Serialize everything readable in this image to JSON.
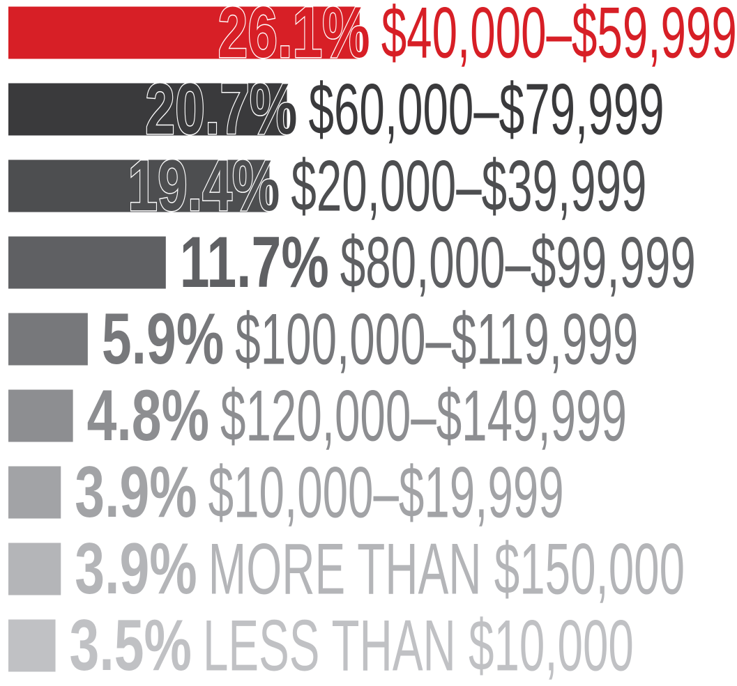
{
  "chart_data": {
    "type": "bar",
    "orientation": "horizontal",
    "categories": [
      "$40,000–$59,999",
      "$60,000–$79,999",
      "$20,000–$39,999",
      "$80,000–$99,999",
      "$100,000–$119,999",
      "$120,000–$149,999",
      "$10,000–$19,999",
      "MORE THAN $150,000",
      "LESS THAN $10,000"
    ],
    "values": [
      26.1,
      20.7,
      19.4,
      11.7,
      5.9,
      4.8,
      3.9,
      3.9,
      3.5
    ],
    "value_labels": [
      "26.1%",
      "20.7%",
      "19.4%",
      "11.7%",
      "5.9%",
      "4.8%",
      "3.9%",
      "3.9%",
      "3.5%"
    ],
    "colors": [
      "#d71f26",
      "#3a3a3c",
      "#4d4e50",
      "#5f6063",
      "#77787b",
      "#8d8e91",
      "#a2a3a6",
      "#b4b5b8",
      "#c0c1c4"
    ]
  }
}
